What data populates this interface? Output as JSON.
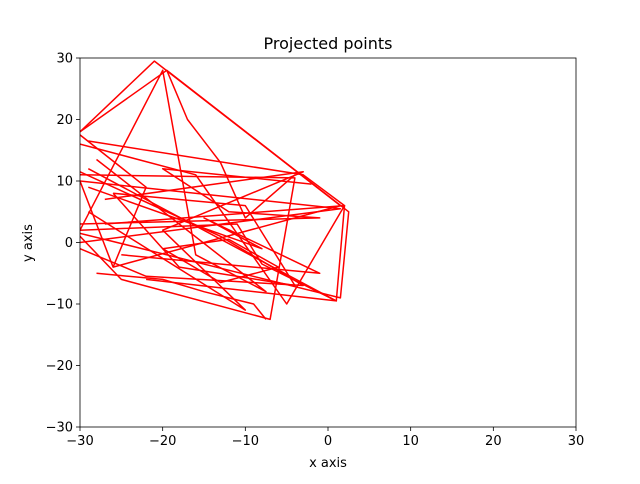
{
  "chart_data": {
    "type": "line",
    "title": "Projected points",
    "xlabel": "x axis",
    "ylabel": "y axis",
    "xlim": [
      -30,
      30
    ],
    "ylim": [
      -30,
      30
    ],
    "xticks": [
      -30,
      -20,
      -10,
      0,
      10,
      20,
      30
    ],
    "yticks": [
      -30,
      -20,
      -10,
      0,
      10,
      20,
      30
    ],
    "xtick_labels": [
      "−30",
      "−20",
      "−10",
      "0",
      "10",
      "20",
      "30"
    ],
    "ytick_labels": [
      "−30",
      "−20",
      "−10",
      "0",
      "10",
      "20",
      "30"
    ],
    "grid": false,
    "line_color": "#ff0000",
    "series": [
      {
        "x": [
          -30,
          -19.5,
          2.5,
          1.5,
          -30
        ],
        "y": [
          18,
          28,
          5,
          -9,
          1.5
        ]
      },
      {
        "x": [
          -30,
          -21,
          1.5,
          -26
        ],
        "y": [
          18,
          29.5,
          6,
          -4
        ]
      },
      {
        "x": [
          -30,
          -22,
          -26,
          -30
        ],
        "y": [
          17.5,
          9,
          -4,
          10
        ]
      },
      {
        "x": [
          -29,
          -3,
          2,
          1,
          -29
        ],
        "y": [
          16.5,
          11,
          6,
          -9.5,
          12
        ]
      },
      {
        "x": [
          -30,
          -4,
          -7,
          -25,
          -30
        ],
        "y": [
          11,
          10.5,
          -12.5,
          -6,
          1
        ]
      },
      {
        "x": [
          -30,
          1.5,
          -30
        ],
        "y": [
          10,
          5.5,
          0
        ]
      },
      {
        "x": [
          -28,
          -7.5,
          -16,
          -20,
          -30
        ],
        "y": [
          13.5,
          -8,
          -2,
          28,
          2
        ]
      },
      {
        "x": [
          -30,
          -13,
          -3,
          -22,
          -30
        ],
        "y": [
          11.5,
          1,
          -7,
          -5.5,
          -1
        ]
      },
      {
        "x": [
          -26,
          -10,
          -4,
          -18,
          -26
        ],
        "y": [
          8,
          6,
          -7,
          -4,
          8
        ]
      },
      {
        "x": [
          -30,
          -11,
          -8,
          1,
          -22
        ],
        "y": [
          2,
          3,
          -3.5,
          -9.5,
          -6
        ]
      },
      {
        "x": [
          -29,
          -8,
          -15,
          -1,
          -25
        ],
        "y": [
          9,
          -1,
          4,
          -5,
          -2
        ]
      },
      {
        "x": [
          -20,
          -13,
          -6,
          -12,
          -20
        ],
        "y": [
          -1,
          -6.5,
          -4,
          0.5,
          -1
        ]
      },
      {
        "x": [
          -27,
          -3,
          -20,
          -10,
          -29
        ],
        "y": [
          7,
          11.5,
          2,
          -11,
          5
        ]
      },
      {
        "x": [
          -30,
          -16,
          -5,
          2,
          -27
        ],
        "y": [
          16,
          11,
          -10,
          6,
          3
        ]
      },
      {
        "x": [
          -19.5,
          -17,
          -13,
          -10,
          -4
        ],
        "y": [
          28,
          20,
          13,
          4,
          11
        ]
      },
      {
        "x": [
          -28,
          -20,
          -15,
          -12,
          -9,
          -7.5
        ],
        "y": [
          -5,
          -6,
          -8,
          -9,
          -10,
          -12.5
        ]
      },
      {
        "x": [
          -2,
          -20,
          -12,
          -1,
          -30
        ],
        "y": [
          9.5,
          12,
          5,
          4,
          3
        ]
      }
    ]
  }
}
